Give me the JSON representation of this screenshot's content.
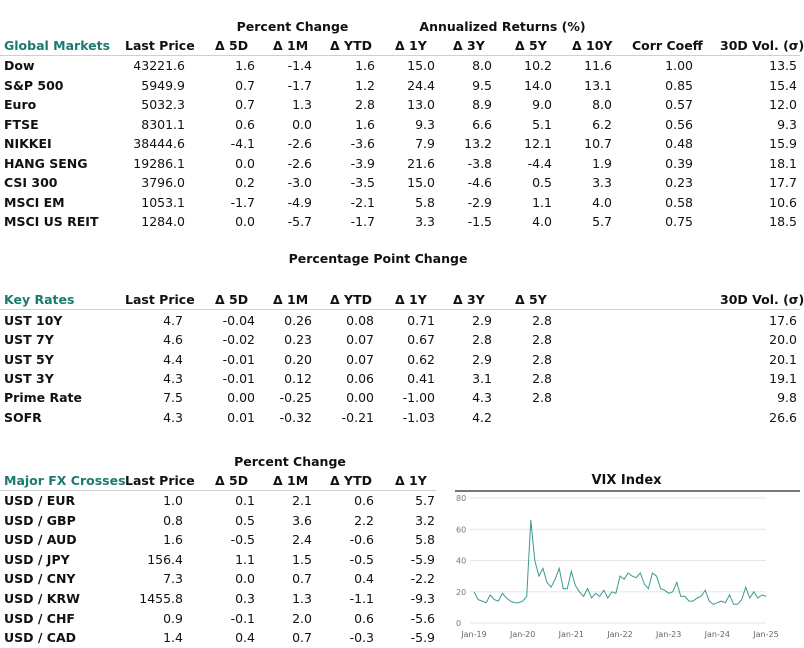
{
  "colors": {
    "accent": "#1b7a6f",
    "vix_line": "#3a9a90"
  },
  "global_markets": {
    "group_headers": [
      "Percent Change",
      "Annualized Returns (%)"
    ],
    "columns": [
      "Global Markets",
      "Last Price",
      "Δ 5D",
      "Δ 1M",
      "Δ YTD",
      "Δ 1Y",
      "Δ 3Y",
      "Δ 5Y",
      "Δ 10Y",
      "Corr Coeff",
      "30D Vol. (σ)"
    ],
    "rows": [
      [
        "Dow",
        "43221.6",
        "1.6",
        "-1.4",
        "1.6",
        "15.0",
        "8.0",
        "10.2",
        "11.6",
        "1.00",
        "13.5"
      ],
      [
        "S&P 500",
        "5949.9",
        "0.7",
        "-1.7",
        "1.2",
        "24.4",
        "9.5",
        "14.0",
        "13.1",
        "0.85",
        "15.4"
      ],
      [
        "Euro",
        "5032.3",
        "0.7",
        "1.3",
        "2.8",
        "13.0",
        "8.9",
        "9.0",
        "8.0",
        "0.57",
        "12.0"
      ],
      [
        "FTSE",
        "8301.1",
        "0.6",
        "0.0",
        "1.6",
        "9.3",
        "6.6",
        "5.1",
        "6.2",
        "0.56",
        "9.3"
      ],
      [
        "NIKKEI",
        "38444.6",
        "-4.1",
        "-2.6",
        "-3.6",
        "7.9",
        "13.2",
        "12.1",
        "10.7",
        "0.48",
        "15.9"
      ],
      [
        "HANG SENG",
        "19286.1",
        "0.0",
        "-2.6",
        "-3.9",
        "21.6",
        "-3.8",
        "-4.4",
        "1.9",
        "0.39",
        "18.1"
      ],
      [
        "CSI 300",
        "3796.0",
        "0.2",
        "-3.0",
        "-3.5",
        "15.0",
        "-4.6",
        "0.5",
        "3.3",
        "0.23",
        "17.7"
      ],
      [
        "MSCI EM",
        "1053.1",
        "-1.7",
        "-4.9",
        "-2.1",
        "5.8",
        "-2.9",
        "1.1",
        "4.0",
        "0.58",
        "10.6"
      ],
      [
        "MSCI US REIT",
        "1284.0",
        "0.0",
        "-5.7",
        "-1.7",
        "3.3",
        "-1.5",
        "4.0",
        "5.7",
        "0.75",
        "18.5"
      ]
    ]
  },
  "key_rates": {
    "group_header": "Percentage Point Change",
    "columns": [
      "Key Rates",
      "Last Price",
      "Δ 5D",
      "Δ 1M",
      "Δ YTD",
      "Δ 1Y",
      "Δ 3Y",
      "Δ 5Y",
      "30D Vol. (σ)"
    ],
    "rows": [
      [
        "UST 10Y",
        "4.7",
        "-0.04",
        "0.26",
        "0.08",
        "0.71",
        "2.9",
        "2.8",
        "17.6"
      ],
      [
        "UST 7Y",
        "4.6",
        "-0.02",
        "0.23",
        "0.07",
        "0.67",
        "2.8",
        "2.8",
        "20.0"
      ],
      [
        "UST 5Y",
        "4.4",
        "-0.01",
        "0.20",
        "0.07",
        "0.62",
        "2.9",
        "2.8",
        "20.1"
      ],
      [
        "UST 3Y",
        "4.3",
        "-0.01",
        "0.12",
        "0.06",
        "0.41",
        "3.1",
        "2.8",
        "19.1"
      ],
      [
        "Prime Rate",
        "7.5",
        "0.00",
        "-0.25",
        "0.00",
        "-1.00",
        "4.3",
        "2.8",
        "9.8"
      ],
      [
        "SOFR",
        "4.3",
        "0.01",
        "-0.32",
        "-0.21",
        "-1.03",
        "4.2",
        "",
        "26.6"
      ]
    ]
  },
  "fx": {
    "group_header": "Percent Change",
    "columns": [
      "Major FX Crosses",
      "Last Price",
      "Δ 5D",
      "Δ 1M",
      "Δ YTD",
      "Δ 1Y"
    ],
    "rows": [
      [
        "USD / EUR",
        "1.0",
        "0.1",
        "2.1",
        "0.6",
        "5.7"
      ],
      [
        "USD / GBP",
        "0.8",
        "0.5",
        "3.6",
        "2.2",
        "3.2"
      ],
      [
        "USD / AUD",
        "1.6",
        "-0.5",
        "2.4",
        "-0.6",
        "5.8"
      ],
      [
        "USD / JPY",
        "156.4",
        "1.1",
        "1.5",
        "-0.5",
        "-5.9"
      ],
      [
        "USD / CNY",
        "7.3",
        "0.0",
        "0.7",
        "0.4",
        "-2.2"
      ],
      [
        "USD / KRW",
        "1455.8",
        "0.3",
        "1.3",
        "-1.1",
        "-9.3"
      ],
      [
        "USD / CHF",
        "0.9",
        "-0.1",
        "2.0",
        "0.6",
        "-5.6"
      ],
      [
        "USD / CAD",
        "1.4",
        "0.4",
        "0.7",
        "-0.3",
        "-5.9"
      ]
    ]
  },
  "chart_data": {
    "type": "line",
    "title": "VIX Index",
    "xlabel": "",
    "ylabel": "",
    "x_tick_labels": [
      "Jan-19",
      "Jan-20",
      "Jan-21",
      "Jan-22",
      "Jan-23",
      "Jan-24",
      "Jan-25"
    ],
    "y_ticks": [
      0,
      20,
      40,
      60,
      80
    ],
    "ylim": [
      0,
      80
    ],
    "grid": true,
    "x_start": "Jan-19",
    "x_end": "Jan-25",
    "frequency": "monthly",
    "values": [
      20,
      15,
      14,
      13,
      18,
      15,
      14,
      19,
      16,
      14,
      13,
      13,
      14,
      17,
      66,
      40,
      30,
      35,
      26,
      23,
      28,
      35,
      22,
      22,
      33,
      24,
      20,
      17,
      22,
      16,
      19,
      17,
      21,
      16,
      20,
      19,
      30,
      28,
      32,
      30,
      29,
      32,
      25,
      22,
      32,
      30,
      22,
      21,
      19,
      20,
      26,
      17,
      17,
      14,
      14,
      16,
      17,
      21,
      14,
      12,
      13,
      14,
      13,
      18,
      12,
      12,
      15,
      23,
      16,
      20,
      16,
      18,
      17
    ]
  }
}
